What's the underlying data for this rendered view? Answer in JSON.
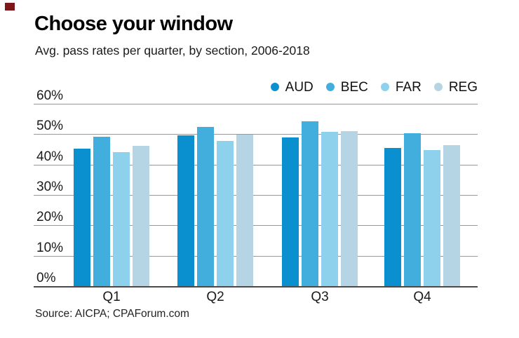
{
  "page": {
    "corner_marker_color": "#7d1618",
    "background_color": "#ffffff"
  },
  "chart_data": {
    "type": "bar",
    "title": "Choose your window",
    "subtitle": "Avg. pass rates per quarter, by section, 2006-2018",
    "source": "Source: AICPA; CPAForum.com",
    "categories": [
      "Q1",
      "Q2",
      "Q3",
      "Q4"
    ],
    "series": [
      {
        "name": "AUD",
        "color": "#0a90ce",
        "values": [
          45.2,
          49.6,
          49.0,
          45.4
        ]
      },
      {
        "name": "BEC",
        "color": "#42aede",
        "values": [
          49.2,
          52.5,
          54.3,
          50.2
        ]
      },
      {
        "name": "FAR",
        "color": "#8dd1ed",
        "values": [
          44.1,
          47.8,
          50.8,
          44.8
        ]
      },
      {
        "name": "REG",
        "color": "#b5d4e4",
        "values": [
          46.2,
          49.8,
          51.0,
          46.3
        ]
      }
    ],
    "ylim": [
      0,
      60
    ],
    "y_ticks": [
      0,
      10,
      20,
      30,
      40,
      50,
      60
    ],
    "y_tick_suffix": "%",
    "grid": "horizontal",
    "legend_position": "top-right",
    "gridline_color": "#999999",
    "axis_line_color": "#4a4a4a"
  }
}
